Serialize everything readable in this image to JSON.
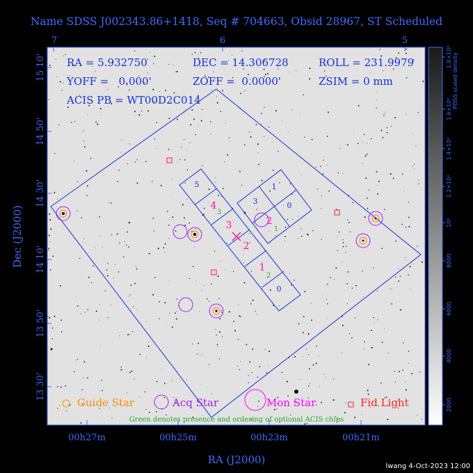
{
  "title": "Name SDSS J002343.86+1418, Seq # 704663, Obsid 28967, ST Scheduled",
  "info": {
    "ra": "RA = 5.932750",
    "dec": "DEC = 14.306728",
    "roll": "ROLL = 231.9979",
    "yoff": "YOFF =   0.000'",
    "zoff": "ZOFF =  0.0000'",
    "zsim": "ZSIM = 0 mm",
    "acis": "ACIS PB = WT00D2C014"
  },
  "legend": {
    "guide": "Guide Star",
    "acq": "Acq Star",
    "mon": "Mon Star",
    "fid": "Fid Light",
    "note": "Green denotes presence and ordering of optional ACIS chips"
  },
  "colorbar": {
    "label": "POSS scaled density",
    "ticks": [
      "2000",
      "4000",
      "6000",
      "8000",
      "10⁴",
      "1.2×10⁴",
      "1.4×10⁴",
      "1.6×10⁴",
      "1.8×10⁴"
    ]
  },
  "footer": "lwang  4-Oct-2023 12:00",
  "chart_data": {
    "type": "scatter",
    "title": "Name SDSS J002343.86+1418, Seq # 704663, Obsid 28967, ST Scheduled",
    "xlabel": "RA (J2000)",
    "ylabel": "Dec (J2000)",
    "x_ticks_bottom": [
      "00h27m",
      "00h25m",
      "00h23m",
      "00h21m"
    ],
    "x_ticks_top": [
      "7",
      "6",
      "5"
    ],
    "y_ticks": [
      "15 10'",
      "14 50'",
      "14 30'",
      "14 10'",
      "13 50'",
      "13 30'"
    ],
    "chips": {
      "main": [
        "5",
        "4",
        "3",
        "2",
        "1",
        "0"
      ],
      "side": [
        "3",
        "1",
        "0"
      ],
      "optional": [
        "3",
        "2",
        "1",
        "2"
      ]
    },
    "markers": {
      "guide_stars": 6,
      "acq_stars": 8,
      "fid_lights": 4
    },
    "colors": {
      "axis": "#3f6bff",
      "guide": "#ff8c00",
      "acq": "#a020f0",
      "mon": "#ff00ff",
      "fid": "#ff2020",
      "optional": "#22aa22",
      "chipnum_main": "#ff1493"
    }
  }
}
